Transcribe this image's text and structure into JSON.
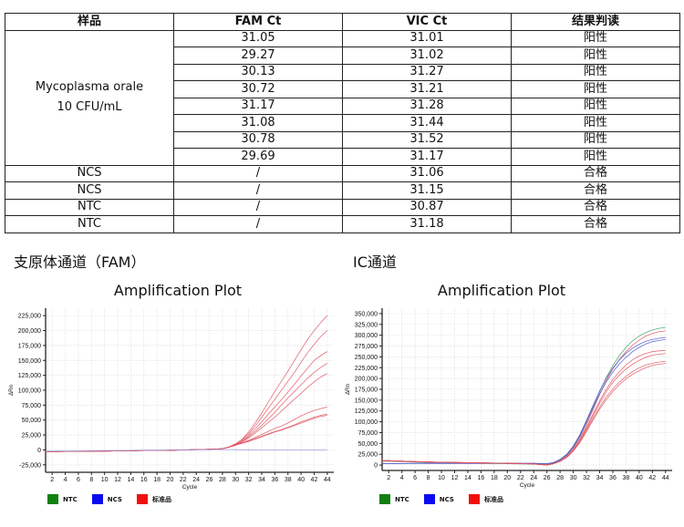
{
  "table": {
    "headers": [
      "样品",
      "FAM Ct",
      "VIC Ct",
      "结果判读"
    ],
    "sample_group": {
      "name_line1": "Mycoplasma orale",
      "name_line2": "10 CFU/mL",
      "rows": [
        {
          "fam": "31.05",
          "vic": "31.01",
          "result": "阳性"
        },
        {
          "fam": "29.27",
          "vic": "31.02",
          "result": "阳性"
        },
        {
          "fam": "30.13",
          "vic": "31.27",
          "result": "阳性"
        },
        {
          "fam": "30.72",
          "vic": "31.21",
          "result": "阳性"
        },
        {
          "fam": "31.17",
          "vic": "31.28",
          "result": "阳性"
        },
        {
          "fam": "31.08",
          "vic": "31.44",
          "result": "阳性"
        },
        {
          "fam": "30.78",
          "vic": "31.52",
          "result": "阳性"
        },
        {
          "fam": "29.69",
          "vic": "31.17",
          "result": "阳性"
        }
      ]
    },
    "control_rows": [
      {
        "sample": "NCS",
        "fam": "/",
        "vic": "31.06",
        "result": "合格"
      },
      {
        "sample": "NCS",
        "fam": "/",
        "vic": "31.15",
        "result": "合格"
      },
      {
        "sample": "NTC",
        "fam": "/",
        "vic": "30.87",
        "result": "合格"
      },
      {
        "sample": "NTC",
        "fam": "/",
        "vic": "31.18",
        "result": "合格"
      }
    ]
  },
  "sections": {
    "left_title": "支原体通道（FAM）",
    "right_title": "IC通道"
  },
  "colors": {
    "ntc": "#118011",
    "ncs": "#0a0af0",
    "standard": "#f01010",
    "curve_standard": "#e05560",
    "curve_ncs_left": "#9090e0",
    "grid": "#e6e6e6",
    "axis": "#222222"
  },
  "chart_data": [
    {
      "type": "line",
      "title": "Amplification Plot",
      "channel": "FAM",
      "xlabel": "Cycle",
      "ylabel": "ΔRn",
      "xlim": [
        1,
        45
      ],
      "ylim": [
        -37500,
        237500
      ],
      "x_ticks": [
        2,
        4,
        6,
        8,
        10,
        12,
        14,
        16,
        18,
        20,
        22,
        24,
        26,
        28,
        30,
        32,
        34,
        36,
        38,
        40,
        42,
        44
      ],
      "y_ticks": [
        -25000,
        0,
        25000,
        50000,
        75000,
        100000,
        125000,
        150000,
        175000,
        200000,
        225000
      ],
      "y_tick_labels": [
        "-25,000",
        "0",
        "25,000",
        "50,000",
        "75,000",
        "100,000",
        "125,000",
        "150,000",
        "175,000",
        "200,000",
        "225,000"
      ],
      "grid": true,
      "legend": [
        {
          "label": "NTC",
          "color": "#118011"
        },
        {
          "label": "NCS",
          "color": "#0a0af0"
        },
        {
          "label": "标准品",
          "color": "#f01010"
        }
      ],
      "legend_position": "bottom-left",
      "x": [
        1,
        2,
        4,
        6,
        8,
        10,
        12,
        14,
        16,
        18,
        20,
        22,
        24,
        26,
        27,
        28,
        29,
        30,
        31,
        32,
        33,
        34,
        35,
        36,
        37,
        38,
        39,
        40,
        41,
        42,
        43,
        44
      ],
      "series": [
        {
          "name": "标准品-1",
          "group": "standard",
          "values": [
            -3000,
            -3000,
            -2500,
            -2500,
            -2000,
            -2000,
            -1500,
            -1500,
            -1000,
            -1000,
            -500,
            0,
            500,
            1000,
            1500,
            2000,
            5000,
            10000,
            18000,
            30000,
            45000,
            62000,
            80000,
            98000,
            115000,
            132000,
            150000,
            168000,
            185000,
            200000,
            213000,
            225000
          ]
        },
        {
          "name": "标准品-2",
          "group": "standard",
          "values": [
            -3000,
            -3000,
            -2500,
            -2500,
            -2000,
            -2000,
            -1500,
            -1500,
            -1000,
            -1000,
            -500,
            0,
            500,
            1000,
            1500,
            2000,
            5000,
            10000,
            17000,
            27000,
            40000,
            55000,
            70000,
            85000,
            100000,
            115000,
            130000,
            147000,
            163000,
            177000,
            190000,
            200000
          ]
        },
        {
          "name": "标准品-3",
          "group": "standard",
          "values": [
            -3000,
            -3000,
            -2500,
            -2500,
            -2000,
            -2000,
            -1500,
            -1500,
            -1000,
            -1000,
            -500,
            0,
            500,
            1000,
            1500,
            2000,
            5000,
            9000,
            15000,
            24000,
            35000,
            47000,
            60000,
            72000,
            84000,
            97000,
            110000,
            124000,
            137000,
            150000,
            158000,
            165000
          ]
        },
        {
          "name": "标准品-4",
          "group": "standard",
          "values": [
            -3000,
            -3000,
            -2500,
            -2500,
            -2000,
            -2000,
            -1500,
            -1500,
            -1000,
            -1000,
            -500,
            0,
            500,
            1000,
            1500,
            2000,
            5000,
            9000,
            14000,
            22000,
            31000,
            41000,
            52000,
            63000,
            75000,
            87000,
            98000,
            109000,
            120000,
            130000,
            138000,
            145000
          ]
        },
        {
          "name": "标准品-5",
          "group": "standard",
          "values": [
            -3000,
            -3000,
            -2500,
            -2500,
            -2000,
            -2000,
            -1500,
            -1500,
            -1000,
            -1000,
            -500,
            0,
            500,
            1000,
            1500,
            2000,
            4500,
            8500,
            13500,
            20000,
            28000,
            37000,
            46000,
            55000,
            65000,
            75000,
            85000,
            95000,
            105000,
            114000,
            122000,
            128000
          ]
        },
        {
          "name": "标准品-6",
          "group": "standard",
          "values": [
            -3000,
            -3000,
            -2500,
            -2500,
            -2000,
            -2000,
            -1500,
            -1500,
            -1000,
            -1000,
            -500,
            0,
            500,
            1000,
            1500,
            2000,
            4500,
            8000,
            12000,
            16000,
            21000,
            26000,
            31000,
            36000,
            40000,
            45000,
            51000,
            57000,
            62000,
            66000,
            69000,
            72000
          ]
        },
        {
          "name": "标准品-7",
          "group": "standard",
          "values": [
            -3000,
            -3000,
            -2500,
            -2500,
            -2000,
            -2000,
            -1500,
            -1500,
            -1000,
            -1000,
            -500,
            0,
            500,
            1000,
            1500,
            2000,
            4500,
            8000,
            11500,
            15000,
            19000,
            23000,
            27000,
            31000,
            34000,
            38000,
            42000,
            47000,
            51000,
            55000,
            58000,
            60000
          ]
        },
        {
          "name": "标准品-8",
          "group": "standard",
          "values": [
            -3000,
            -3000,
            -2500,
            -2500,
            -2000,
            -2000,
            -1500,
            -1500,
            -1000,
            -1000,
            -500,
            0,
            500,
            1000,
            1500,
            2000,
            4500,
            8000,
            11000,
            14000,
            18000,
            22000,
            26000,
            30000,
            33000,
            37000,
            41000,
            45000,
            49000,
            53000,
            56000,
            58000
          ]
        },
        {
          "name": "NCS/NTC",
          "group": "ncs",
          "values": [
            -2000,
            -2000,
            -1800,
            -1600,
            -1400,
            -1200,
            -1000,
            -800,
            -600,
            -400,
            -200,
            0,
            200,
            400,
            500,
            600,
            500,
            400,
            300,
            200,
            100,
            0,
            0,
            0,
            0,
            0,
            0,
            0,
            0,
            0,
            0,
            0
          ]
        }
      ]
    },
    {
      "type": "line",
      "title": "Amplification Plot",
      "channel": "VIC (IC)",
      "xlabel": "Cycle",
      "ylabel": "ΔRn",
      "xlim": [
        1,
        45
      ],
      "ylim": [
        -12500,
        362500
      ],
      "x_ticks": [
        2,
        4,
        6,
        8,
        10,
        12,
        14,
        16,
        18,
        20,
        22,
        24,
        26,
        28,
        30,
        32,
        34,
        36,
        38,
        40,
        42,
        44
      ],
      "y_ticks": [
        0,
        25000,
        50000,
        75000,
        100000,
        125000,
        150000,
        175000,
        200000,
        225000,
        250000,
        275000,
        300000,
        325000,
        350000
      ],
      "y_tick_labels": [
        "0",
        "25,000",
        "50,000",
        "75,000",
        "100,000",
        "125,000",
        "150,000",
        "175,000",
        "200,000",
        "225,000",
        "250,000",
        "275,000",
        "300,000",
        "325,000",
        "350,000"
      ],
      "grid": true,
      "legend": [
        {
          "label": "NTC",
          "color": "#118011"
        },
        {
          "label": "NCS",
          "color": "#0a0af0"
        },
        {
          "label": "标准品",
          "color": "#f01010"
        }
      ],
      "legend_position": "bottom-left",
      "x": [
        1,
        2,
        4,
        6,
        8,
        10,
        12,
        14,
        16,
        18,
        20,
        22,
        24,
        26,
        27,
        28,
        29,
        30,
        31,
        32,
        33,
        34,
        35,
        36,
        37,
        38,
        39,
        40,
        41,
        42,
        43,
        44
      ],
      "series": [
        {
          "name": "NTC-1",
          "group": "ntc",
          "plateau": 318000,
          "values": [
            9000,
            9000,
            8000,
            7000,
            6000,
            5500,
            5000,
            4500,
            4000,
            3500,
            3000,
            2500,
            2000,
            1500,
            5000,
            12000,
            24000,
            42000,
            68000,
            100000,
            135000,
            170000,
            202000,
            230000,
            253000,
            272000,
            287000,
            298000,
            306000,
            312000,
            316000,
            318000
          ]
        },
        {
          "name": "标准品-1",
          "group": "standard",
          "plateau": 310000,
          "values": [
            10000,
            10000,
            9000,
            8000,
            7000,
            6500,
            6000,
            5500,
            5000,
            4500,
            4000,
            3500,
            2500,
            1000,
            4000,
            10000,
            21000,
            38000,
            62000,
            93000,
            128000,
            163000,
            195000,
            222000,
            244000,
            262000,
            277000,
            289000,
            298000,
            304000,
            308000,
            310000
          ]
        },
        {
          "name": "NCS-1",
          "group": "ncs",
          "plateau": 295000,
          "values": [
            3000,
            3000,
            3500,
            4000,
            4000,
            4000,
            4000,
            4000,
            4000,
            4000,
            4000,
            4000,
            4000,
            3000,
            6000,
            13000,
            25000,
            44000,
            70000,
            103000,
            138000,
            171000,
            200000,
            224000,
            243000,
            258000,
            270000,
            279000,
            286000,
            290000,
            293000,
            295000
          ]
        },
        {
          "name": "NCS-2",
          "group": "ncs",
          "plateau": 290000,
          "values": [
            3000,
            3000,
            3500,
            4000,
            4000,
            4000,
            4000,
            4000,
            4000,
            4000,
            4000,
            4000,
            4000,
            3000,
            5500,
            12000,
            23000,
            41000,
            66000,
            98000,
            132000,
            164000,
            192000,
            215000,
            234000,
            249000,
            262000,
            272000,
            280000,
            285000,
            288000,
            290000
          ]
        },
        {
          "name": "标准品-2",
          "group": "standard",
          "plateau": 265000,
          "values": [
            10000,
            10000,
            9000,
            8000,
            7000,
            6500,
            6000,
            5500,
            5000,
            4500,
            4000,
            3500,
            2500,
            0,
            3000,
            9000,
            19000,
            35000,
            58000,
            87000,
            118000,
            148000,
            175000,
            198000,
            216000,
            231000,
            243000,
            252000,
            258000,
            262000,
            264000,
            265000
          ]
        },
        {
          "name": "标准品-3",
          "group": "standard",
          "plateau": 258000,
          "values": [
            10000,
            10000,
            9000,
            8000,
            7000,
            6500,
            6000,
            5500,
            5000,
            4500,
            4000,
            3500,
            2500,
            0,
            3000,
            9000,
            19000,
            34000,
            56000,
            84000,
            114000,
            143000,
            169000,
            191000,
            208000,
            222000,
            233000,
            242000,
            249000,
            254000,
            256000,
            258000
          ]
        },
        {
          "name": "标准品-4",
          "group": "standard",
          "plateau": 240000,
          "values": [
            10000,
            10000,
            9000,
            8000,
            7000,
            6500,
            6000,
            5500,
            5000,
            4500,
            4000,
            3500,
            2500,
            0,
            3000,
            8500,
            18000,
            33000,
            54000,
            80000,
            108000,
            134000,
            157000,
            176000,
            192000,
            205000,
            216000,
            225000,
            231000,
            235000,
            238000,
            240000
          ]
        },
        {
          "name": "标准品-5",
          "group": "standard",
          "plateau": 235000,
          "values": [
            10000,
            10000,
            9000,
            8000,
            7000,
            6500,
            6000,
            5500,
            5000,
            4500,
            4000,
            3500,
            2500,
            0,
            3000,
            8500,
            17500,
            32000,
            52000,
            77000,
            104000,
            129000,
            151000,
            170000,
            186000,
            199000,
            210000,
            218000,
            225000,
            230000,
            233000,
            235000
          ]
        }
      ]
    }
  ]
}
